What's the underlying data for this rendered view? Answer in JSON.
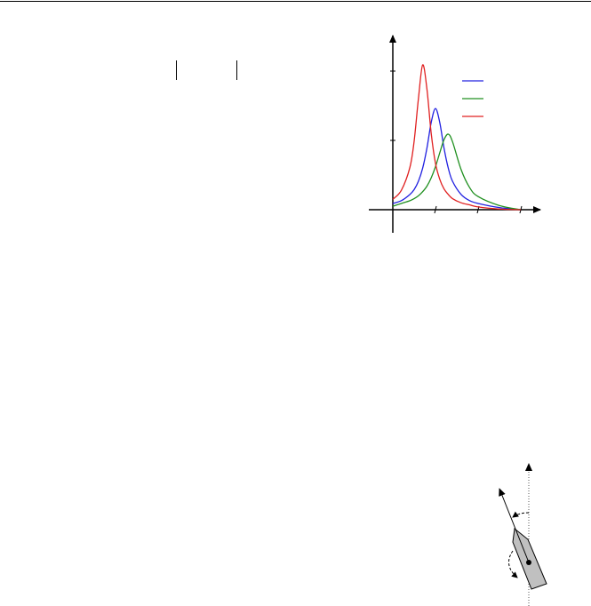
{
  "page": {
    "header_rule": true
  },
  "chart_data": {
    "type": "line",
    "title": "",
    "xlabel": "",
    "ylabel": "",
    "xlim": [
      0,
      3.3
    ],
    "ylim": [
      -0.33,
      2.5
    ],
    "x_ticks": [
      1,
      2,
      3
    ],
    "y_ticks": [
      1,
      2
    ],
    "grid": false,
    "legend_placement": "top-right",
    "x": [
      0,
      0.2,
      0.4,
      0.5,
      0.6,
      0.7,
      0.8,
      0.9,
      1.0,
      1.1,
      1.2,
      1.3,
      1.4,
      1.6,
      1.8,
      2.0,
      2.5,
      3.0
    ],
    "series": [
      {
        "color": "#2020e0",
        "values": [
          0.09,
          0.13,
          0.22,
          0.29,
          0.41,
          0.6,
          0.89,
          1.26,
          1.46,
          1.26,
          0.89,
          0.6,
          0.41,
          0.22,
          0.13,
          0.09,
          0.03,
          0.0
        ]
      },
      {
        "color": "#209020",
        "values": [
          0.05,
          0.09,
          0.13,
          0.16,
          0.2,
          0.26,
          0.34,
          0.46,
          0.62,
          0.82,
          1.01,
          1.09,
          0.98,
          0.58,
          0.32,
          0.19,
          0.06,
          0.0
        ]
      },
      {
        "color": "#e02020",
        "values": [
          0.15,
          0.28,
          0.61,
          0.99,
          1.6,
          2.09,
          1.74,
          1.1,
          0.67,
          0.44,
          0.3,
          0.22,
          0.16,
          0.1,
          0.07,
          0.04,
          0.01,
          0.0
        ]
      }
    ]
  },
  "diagram": {
    "hull_color": "#c0c0c0"
  }
}
